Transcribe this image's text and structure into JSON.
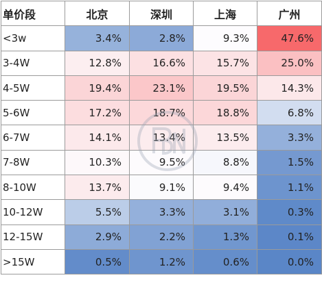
{
  "chart_data": {
    "type": "table",
    "corner_label": "单价段",
    "columns": [
      "北京",
      "深圳",
      "上海",
      "广州"
    ],
    "rows": [
      "<3w",
      "3-4W",
      "4-5W",
      "5-6W",
      "6-7W",
      "7-8W",
      "8-10W",
      "10-12W",
      "12-15W",
      ">15W"
    ],
    "values": [
      [
        3.4,
        2.8,
        9.3,
        47.6
      ],
      [
        12.8,
        16.6,
        15.7,
        25.0
      ],
      [
        19.4,
        23.1,
        19.5,
        14.3
      ],
      [
        17.2,
        18.7,
        18.8,
        6.8
      ],
      [
        14.1,
        13.4,
        13.5,
        3.3
      ],
      [
        10.3,
        9.5,
        8.8,
        1.5
      ],
      [
        13.7,
        9.1,
        9.4,
        1.1
      ],
      [
        5.5,
        3.3,
        3.1,
        0.3
      ],
      [
        2.9,
        2.2,
        1.3,
        0.1
      ],
      [
        0.5,
        1.2,
        0.6,
        0.0
      ]
    ],
    "unit": "%",
    "color_scale": {
      "low": "#5a86c7",
      "mid": "#fdfcfe",
      "high": "#f7696b"
    }
  }
}
